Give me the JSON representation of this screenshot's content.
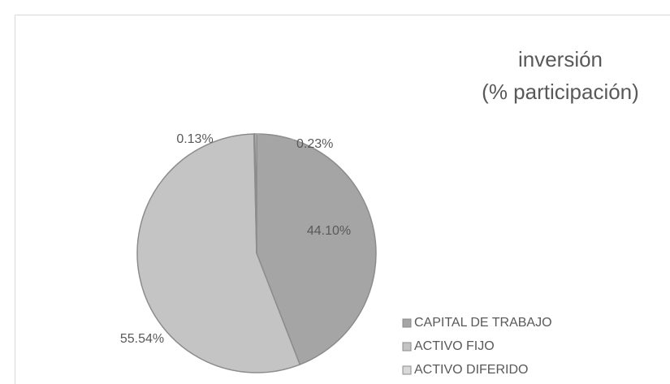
{
  "chart_data": {
    "type": "pie",
    "title": [
      "inversión",
      "(% participación)"
    ],
    "categories": [
      "CAPITAL DE TRABAJO",
      "ACTIVO FIJO",
      "ACTIVO DIFERIDO",
      null
    ],
    "values": [
      44.1,
      55.54,
      0.13,
      0.23
    ],
    "value_labels": [
      "44.10%",
      "55.54%",
      "0.13%",
      "0.23%"
    ],
    "colors": [
      "#a5a5a5",
      "#c4c4c4",
      "#d9d9d9",
      "#e6e6e6"
    ],
    "legend": "right"
  }
}
